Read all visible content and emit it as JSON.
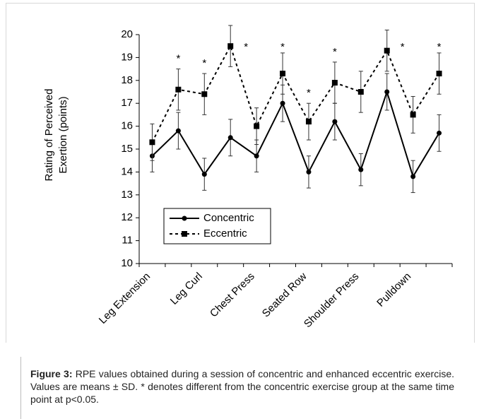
{
  "chart_data": {
    "type": "line",
    "ylabel": [
      "Rating of Perceived",
      "Exertion (points)"
    ],
    "categories": [
      "Leg Extension",
      null,
      "Leg Curl",
      null,
      "Chest Press",
      null,
      "Seated Row",
      null,
      "Shoulder Press",
      null,
      "Pulldown",
      null
    ],
    "series": [
      {
        "name": "Concentric",
        "color": "#000000",
        "dash": false,
        "marker": "circle",
        "values": [
          14.7,
          15.8,
          13.9,
          15.5,
          14.7,
          17.0,
          14.0,
          16.2,
          14.1,
          17.5,
          13.8,
          15.7
        ],
        "errors": [
          0.7,
          0.8,
          0.7,
          0.8,
          0.7,
          0.8,
          0.7,
          0.8,
          0.7,
          0.8,
          0.7,
          0.8
        ]
      },
      {
        "name": "Eccentric",
        "color": "#000000",
        "dash": true,
        "marker": "square",
        "values": [
          15.3,
          17.6,
          17.4,
          19.5,
          16.0,
          18.3,
          16.2,
          17.9,
          17.5,
          19.3,
          16.5,
          18.3
        ],
        "errors": [
          0.8,
          0.9,
          0.9,
          0.9,
          0.8,
          0.9,
          0.8,
          0.9,
          0.9,
          0.9,
          0.8,
          0.9
        ]
      }
    ],
    "annotations": [
      {
        "text": "*",
        "index": 1
      },
      {
        "text": "*",
        "index": 2
      },
      {
        "text": "*",
        "index": 3
      },
      {
        "text": "*",
        "index": 5
      },
      {
        "text": "*",
        "index": 6
      },
      {
        "text": "*",
        "index": 7
      },
      {
        "text": "*",
        "index": 9
      },
      {
        "text": "*",
        "index": 11
      }
    ],
    "ylim": [
      10,
      20
    ],
    "yticks": [
      10,
      11,
      12,
      13,
      14,
      15,
      16,
      17,
      18,
      19,
      20
    ]
  },
  "caption": {
    "label": "Figure 3:",
    "text": "RPE values obtained during a session of concentric and enhanced eccentric exercise. Values are means ± SD. * denotes different from the concentric exercise group at the same time point at p<0.05."
  }
}
